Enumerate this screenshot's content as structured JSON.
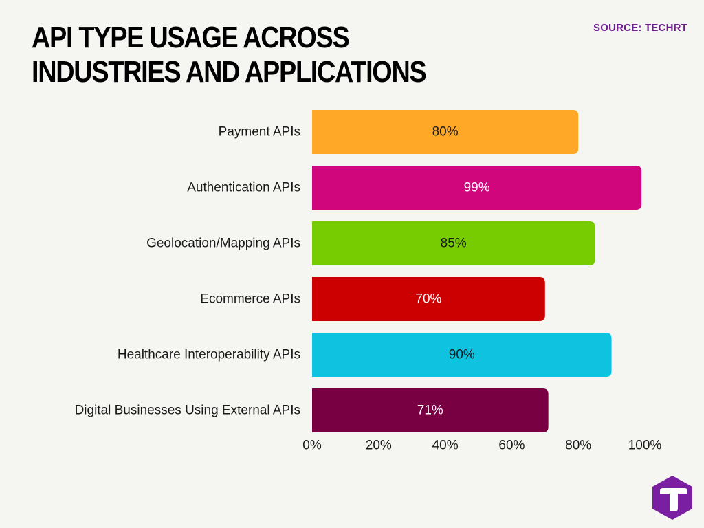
{
  "header": {
    "title": "API TYPE USAGE ACROSS INDUSTRIES AND APPLICATIONS",
    "source": "SOURCE: TECHRT"
  },
  "logo": {
    "icon": "techrt-t-logo-icon",
    "color": "#7b1fa2"
  },
  "chart_data": {
    "type": "bar",
    "orientation": "horizontal",
    "title": "API TYPE USAGE ACROSS INDUSTRIES AND APPLICATIONS",
    "xlabel": "",
    "ylabel": "",
    "xlim": [
      0,
      100
    ],
    "grid": false,
    "legend": "none",
    "categories": [
      "Payment APIs",
      "Authentication APIs",
      "Geolocation/Mapping APIs",
      "Ecommerce APIs",
      "Healthcare Interoperability APIs",
      "Digital Businesses Using External APIs"
    ],
    "values": [
      80,
      99,
      85,
      70,
      90,
      71
    ],
    "data_labels": [
      "80%",
      "99%",
      "85%",
      "70%",
      "90%",
      "71%"
    ],
    "colors": [
      "#ffa726",
      "#d0067d",
      "#76cc00",
      "#cc0000",
      "#0ec2e0",
      "#780042"
    ],
    "label_colors": [
      "#1a1a1a",
      "#ffffff",
      "#1a1a1a",
      "#ffffff",
      "#1a1a1a",
      "#ffffff"
    ],
    "x_ticks": [
      0,
      20,
      40,
      60,
      80,
      100
    ],
    "x_tick_labels": [
      "0%",
      "20%",
      "40%",
      "60%",
      "80%",
      "100%"
    ]
  }
}
